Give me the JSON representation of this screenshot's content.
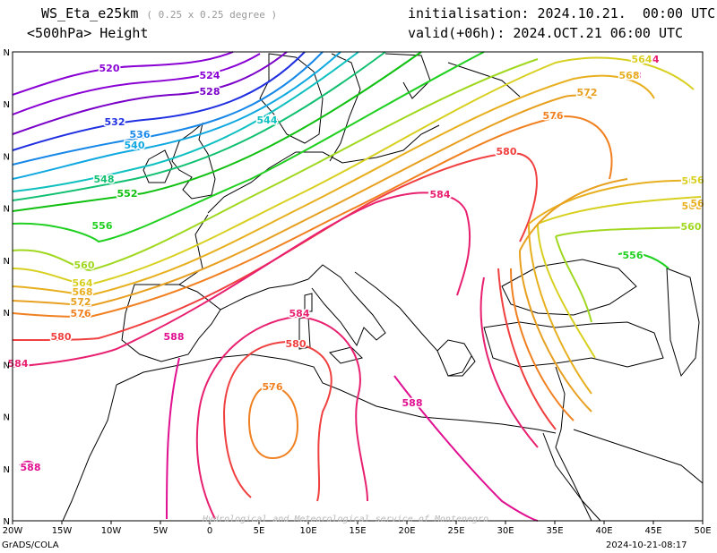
{
  "header": {
    "model": "WS_Eta_e25km",
    "resolution": "( 0.25 x 0.25 degree )",
    "field": "<500hPa> Height",
    "init": "initialisation: 2024.10.21.  00:00 UTC",
    "valid": "valid(+06h): 2024.OCT.21 06:00 UTC"
  },
  "axes": {
    "x_ticks": [
      "20W",
      "15W",
      "10W",
      "5W",
      "0",
      "5E",
      "10E",
      "15E",
      "20E",
      "25E",
      "30E",
      "35E",
      "40E",
      "45E",
      "50E"
    ],
    "y_ticks": [
      "N",
      "N",
      "N",
      "N",
      "N",
      "N",
      "N",
      "N",
      "N",
      "N"
    ]
  },
  "contour_labels": [
    {
      "text": "520",
      "color": "#8a00d4"
    },
    {
      "text": "524",
      "color": "#8a00d4"
    },
    {
      "text": "528",
      "color": "#7a00c8"
    },
    {
      "text": "532",
      "color": "#2030e0"
    },
    {
      "text": "536",
      "color": "#1888e8"
    },
    {
      "text": "540",
      "color": "#10a8e0"
    },
    {
      "text": "544",
      "color": "#10c0c0"
    },
    {
      "text": "548",
      "color": "#10c070"
    },
    {
      "text": "552",
      "color": "#10c010"
    },
    {
      "text": "556",
      "color": "#20d020"
    },
    {
      "text": "560",
      "color": "#a0d820"
    },
    {
      "text": "564",
      "color": "#d8d020"
    },
    {
      "text": "568",
      "color": "#e8b020"
    },
    {
      "text": "572",
      "color": "#e8a020"
    },
    {
      "text": "576",
      "color": "#f08020"
    },
    {
      "text": "580",
      "color": "#f04040"
    },
    {
      "text": "584",
      "color": "#e82070"
    },
    {
      "text": "588",
      "color": "#e01090"
    },
    {
      "text": "556",
      "color": "#20d020"
    },
    {
      "text": "560",
      "color": "#a0d820"
    },
    {
      "text": "564",
      "color": "#d8d020"
    },
    {
      "text": "568",
      "color": "#e8b020"
    },
    {
      "text": "572",
      "color": "#e8a020"
    },
    {
      "text": "576",
      "color": "#f08020"
    },
    {
      "text": "580",
      "color": "#f04040"
    },
    {
      "text": "584",
      "color": "#e82070"
    },
    {
      "text": "584",
      "color": "#e82070"
    },
    {
      "text": "580",
      "color": "#f04040"
    },
    {
      "text": "576",
      "color": "#f08020"
    },
    {
      "text": "588",
      "color": "#e01090"
    },
    {
      "text": "588",
      "color": "#e01090"
    },
    {
      "text": "584",
      "color": "#e82070"
    },
    {
      "text": "588",
      "color": "#e01090"
    },
    {
      "text": "564",
      "color": "#d8d020"
    },
    {
      "text": "568",
      "color": "#e8b020"
    },
    {
      "text": "572",
      "color": "#e8a020"
    },
    {
      "text": "576",
      "color": "#f08020"
    },
    {
      "text": "580",
      "color": "#f04040"
    },
    {
      "text": "584",
      "color": "#e82070"
    },
    {
      "text": "556",
      "color": "#20d020"
    },
    {
      "text": "560",
      "color": "#a0d820"
    },
    {
      "text": "56",
      "color": "#d8d020"
    },
    {
      "text": "56",
      "color": "#e8b020"
    }
  ],
  "footer": {
    "left": "GrADS/COLA",
    "center": "Hydrological and Meteorological service of Montenegro",
    "right": "2024-10-21-08:17"
  }
}
